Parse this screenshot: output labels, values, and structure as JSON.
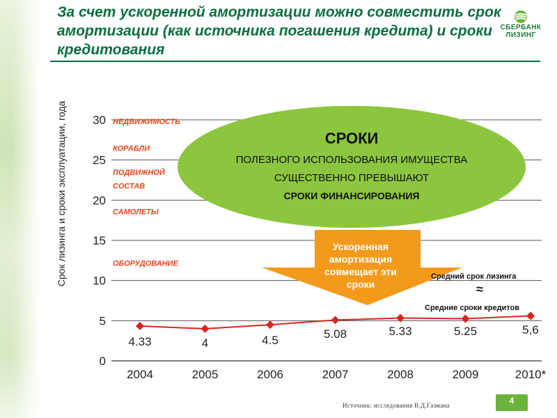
{
  "title": "За счет ускоренной амортизации можно совместить срок амортизации (как источника погашения кредита) и сроки кредитования",
  "logo": {
    "line1": "СБЕРБАНК",
    "line2": "ЛИЗИНГ",
    "icon": "sberbank-logo-icon"
  },
  "colors": {
    "title": "#0a6e3e",
    "category": "#e8461a",
    "line": "#d7261e",
    "bubble": "#8cc63f",
    "arrow": "#f39a1c",
    "badge": "#6bb33b"
  },
  "chart_data": {
    "type": "line",
    "categories": [
      "2004",
      "2005",
      "2006",
      "2007",
      "2008",
      "2009",
      "2010*"
    ],
    "values": [
      4.33,
      4,
      4.5,
      5.08,
      5.33,
      5.25,
      5.6
    ],
    "data_labels": [
      "4.33",
      "4",
      "4.5",
      "5.08",
      "5.33",
      "5.25",
      "5,6"
    ],
    "yticks": [
      "0",
      "5",
      "10",
      "15",
      "20",
      "25",
      "30"
    ],
    "ylim": [
      0,
      30
    ],
    "ylabel": "Срок лизинга и сроки эксплуатации, года",
    "xlabel": "",
    "grid": true,
    "reference_labels": [
      {
        "text": "НЕДВИЖИМОСТЬ",
        "y": 30
      },
      {
        "text": "КОРАБЛИ",
        "y": 26.5
      },
      {
        "text": "ПОДВИЖНОЙ",
        "y": 23.5
      },
      {
        "text": "СОСТАВ",
        "y": 21.8
      },
      {
        "text": "САМОЛЕТЫ",
        "y": 18.6
      },
      {
        "text": "ОБОРУДОВАНИЕ",
        "y": 12.2
      }
    ]
  },
  "bubble": {
    "title": "СРОКИ",
    "line1": "ПОЛЕЗНОГО ИСПОЛЬЗОВАНИЯ ИМУЩЕСТВА",
    "line2": "СУЩЕСТВЕННО ПРЕВЫШАЮТ",
    "line3": "СРОКИ ФИНАНСИРОВАНИЯ"
  },
  "arrow": {
    "text": "Ускоренная амортизация совмещает эти сроки"
  },
  "notes": {
    "lease": "Средний срок лизинга",
    "approx": "≈",
    "credit": "Средние сроки кредитов"
  },
  "source": "Источник: исследования В.Д.Газмана",
  "page_number": "4"
}
